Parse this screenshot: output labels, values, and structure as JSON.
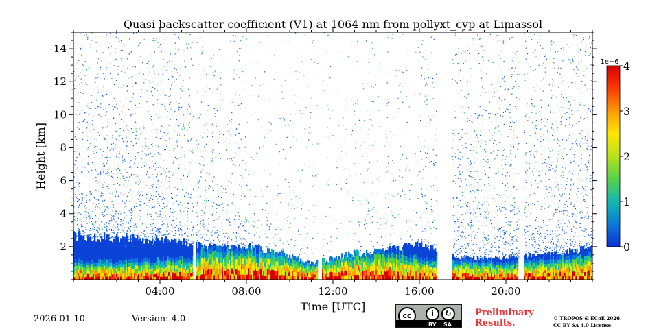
{
  "chart_data": {
    "type": "heatmap",
    "title": "Quasi backscatter coefficient (V1) at 1064 nm from pollyxt_cyp at Limassol",
    "xlabel": "Time [UTC]",
    "ylabel": "Height [km]",
    "xlim_hours": [
      0,
      24
    ],
    "ylim_km": [
      0,
      15
    ],
    "x_ticks": [
      {
        "hour": 4,
        "label": "04:00"
      },
      {
        "hour": 8,
        "label": "08:00"
      },
      {
        "hour": 12,
        "label": "12:00"
      },
      {
        "hour": 16,
        "label": "16:00"
      },
      {
        "hour": 20,
        "label": "20:00"
      }
    ],
    "y_ticks": [
      {
        "km": 2,
        "label": "2"
      },
      {
        "km": 4,
        "label": "4"
      },
      {
        "km": 6,
        "label": "6"
      },
      {
        "km": 8,
        "label": "8"
      },
      {
        "km": 10,
        "label": "10"
      },
      {
        "km": 12,
        "label": "12"
      },
      {
        "km": 14,
        "label": "14"
      }
    ],
    "colorbar": {
      "range": [
        0,
        4
      ],
      "ticks": [
        "0",
        "1",
        "2",
        "3",
        "4"
      ],
      "scale_label": "1e−6"
    },
    "colormap": [
      "#0b2fd4",
      "#0a7ad8",
      "#14b8b0",
      "#56d24a",
      "#b8e21c",
      "#ffe600",
      "#ff9a00",
      "#ff3a00",
      "#d40000"
    ],
    "background_color": "#0a43d6",
    "aerosol_layer_top_km": [
      [
        0,
        1.1
      ],
      [
        2,
        1.1
      ],
      [
        4,
        1.2
      ],
      [
        5.5,
        1.3
      ],
      [
        6,
        1.8
      ],
      [
        8,
        1.9
      ],
      [
        10,
        1.5
      ],
      [
        11,
        1.0
      ],
      [
        12,
        1.3
      ],
      [
        13,
        1.6
      ],
      [
        15,
        1.7
      ],
      [
        16,
        1.3
      ],
      [
        18,
        1.2
      ],
      [
        20,
        1.0
      ],
      [
        22,
        1.3
      ],
      [
        24,
        1.5
      ]
    ],
    "signal_top_km": [
      [
        0,
        2.6
      ],
      [
        2,
        2.5
      ],
      [
        4.5,
        2.3
      ],
      [
        5.5,
        2.2
      ],
      [
        6,
        2.0
      ],
      [
        8,
        2.0
      ],
      [
        9,
        1.7
      ],
      [
        10,
        1.2
      ],
      [
        12,
        0.8
      ],
      [
        14,
        1.6
      ],
      [
        16,
        2.2
      ],
      [
        17,
        1.6
      ],
      [
        18,
        1.3
      ],
      [
        20,
        1.3
      ],
      [
        22,
        1.5
      ],
      [
        24,
        1.9
      ]
    ],
    "data_gaps_hours": [
      [
        5.55,
        5.65
      ],
      [
        11.3,
        11.5
      ],
      [
        16.8,
        17.5
      ],
      [
        20.6,
        20.8
      ]
    ]
  },
  "footer": {
    "date": "2026-01-10",
    "version_label": "Version:",
    "version_value": "4.0",
    "license_by": "BY",
    "license_sa": "SA",
    "preliminary_line1": "Preliminary",
    "preliminary_line2": "Results.",
    "copyright_line1": "© TROPOS & ECoE 2026.",
    "copyright_line2": "CC BY SA 4.0 License."
  }
}
